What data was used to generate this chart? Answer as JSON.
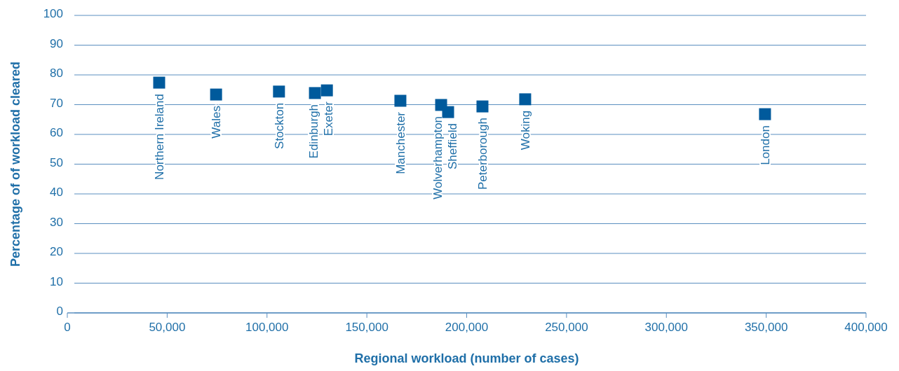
{
  "chart_data": {
    "type": "scatter",
    "xlabel": "Regional workload (number of cases)",
    "ylabel": "Percentage of of workload cleared",
    "x": [
      46000,
      74500,
      106000,
      124000,
      130000,
      166800,
      187200,
      190700,
      207900,
      229300,
      349400
    ],
    "values": [
      77.4,
      73.4,
      74.4,
      73.9,
      74.8,
      71.3,
      69.9,
      67.5,
      69.4,
      71.8,
      66.8
    ],
    "color": "#005a9c",
    "marker": "square",
    "grid": "y",
    "xlim": [
      0,
      400000
    ],
    "xticks": [
      {
        "value": 0,
        "label": "0"
      },
      {
        "value": 50000,
        "label": "50,000"
      },
      {
        "value": 100000,
        "label": "100,000"
      },
      {
        "value": 150000,
        "label": "150,000"
      },
      {
        "value": 200000,
        "label": "200,000"
      },
      {
        "value": 250000,
        "label": "250,000"
      },
      {
        "value": 300000,
        "label": "300,000"
      },
      {
        "value": 350000,
        "label": "350,000"
      },
      {
        "value": 400000,
        "label": "400,000"
      }
    ],
    "ylim": [
      0,
      100
    ],
    "yticks": [
      0,
      10,
      20,
      30,
      40,
      50,
      60,
      70,
      80,
      90,
      100
    ],
    "annotations": [
      {
        "text": "Northern Ireland",
        "x": 46000,
        "y": 77.4
      },
      {
        "text": "Wales",
        "x": 74500,
        "y": 73.4
      },
      {
        "text": "Stockton",
        "x": 106000,
        "y": 74.4
      },
      {
        "text": "Edinburgh",
        "x": 124000,
        "y": 73.9
      },
      {
        "text": "Exeter",
        "x": 130000,
        "y": 74.8
      },
      {
        "text": "Manchester",
        "x": 166800,
        "y": 71.3
      },
      {
        "text": "Wolverhampton",
        "x": 187200,
        "y": 69.9
      },
      {
        "text": "Sheffield",
        "x": 190700,
        "y": 67.5
      },
      {
        "text": "Peterborough",
        "x": 207900,
        "y": 69.4
      },
      {
        "text": "Woking",
        "x": 229300,
        "y": 71.8
      },
      {
        "text": "London",
        "x": 349400,
        "y": 66.8
      }
    ]
  }
}
